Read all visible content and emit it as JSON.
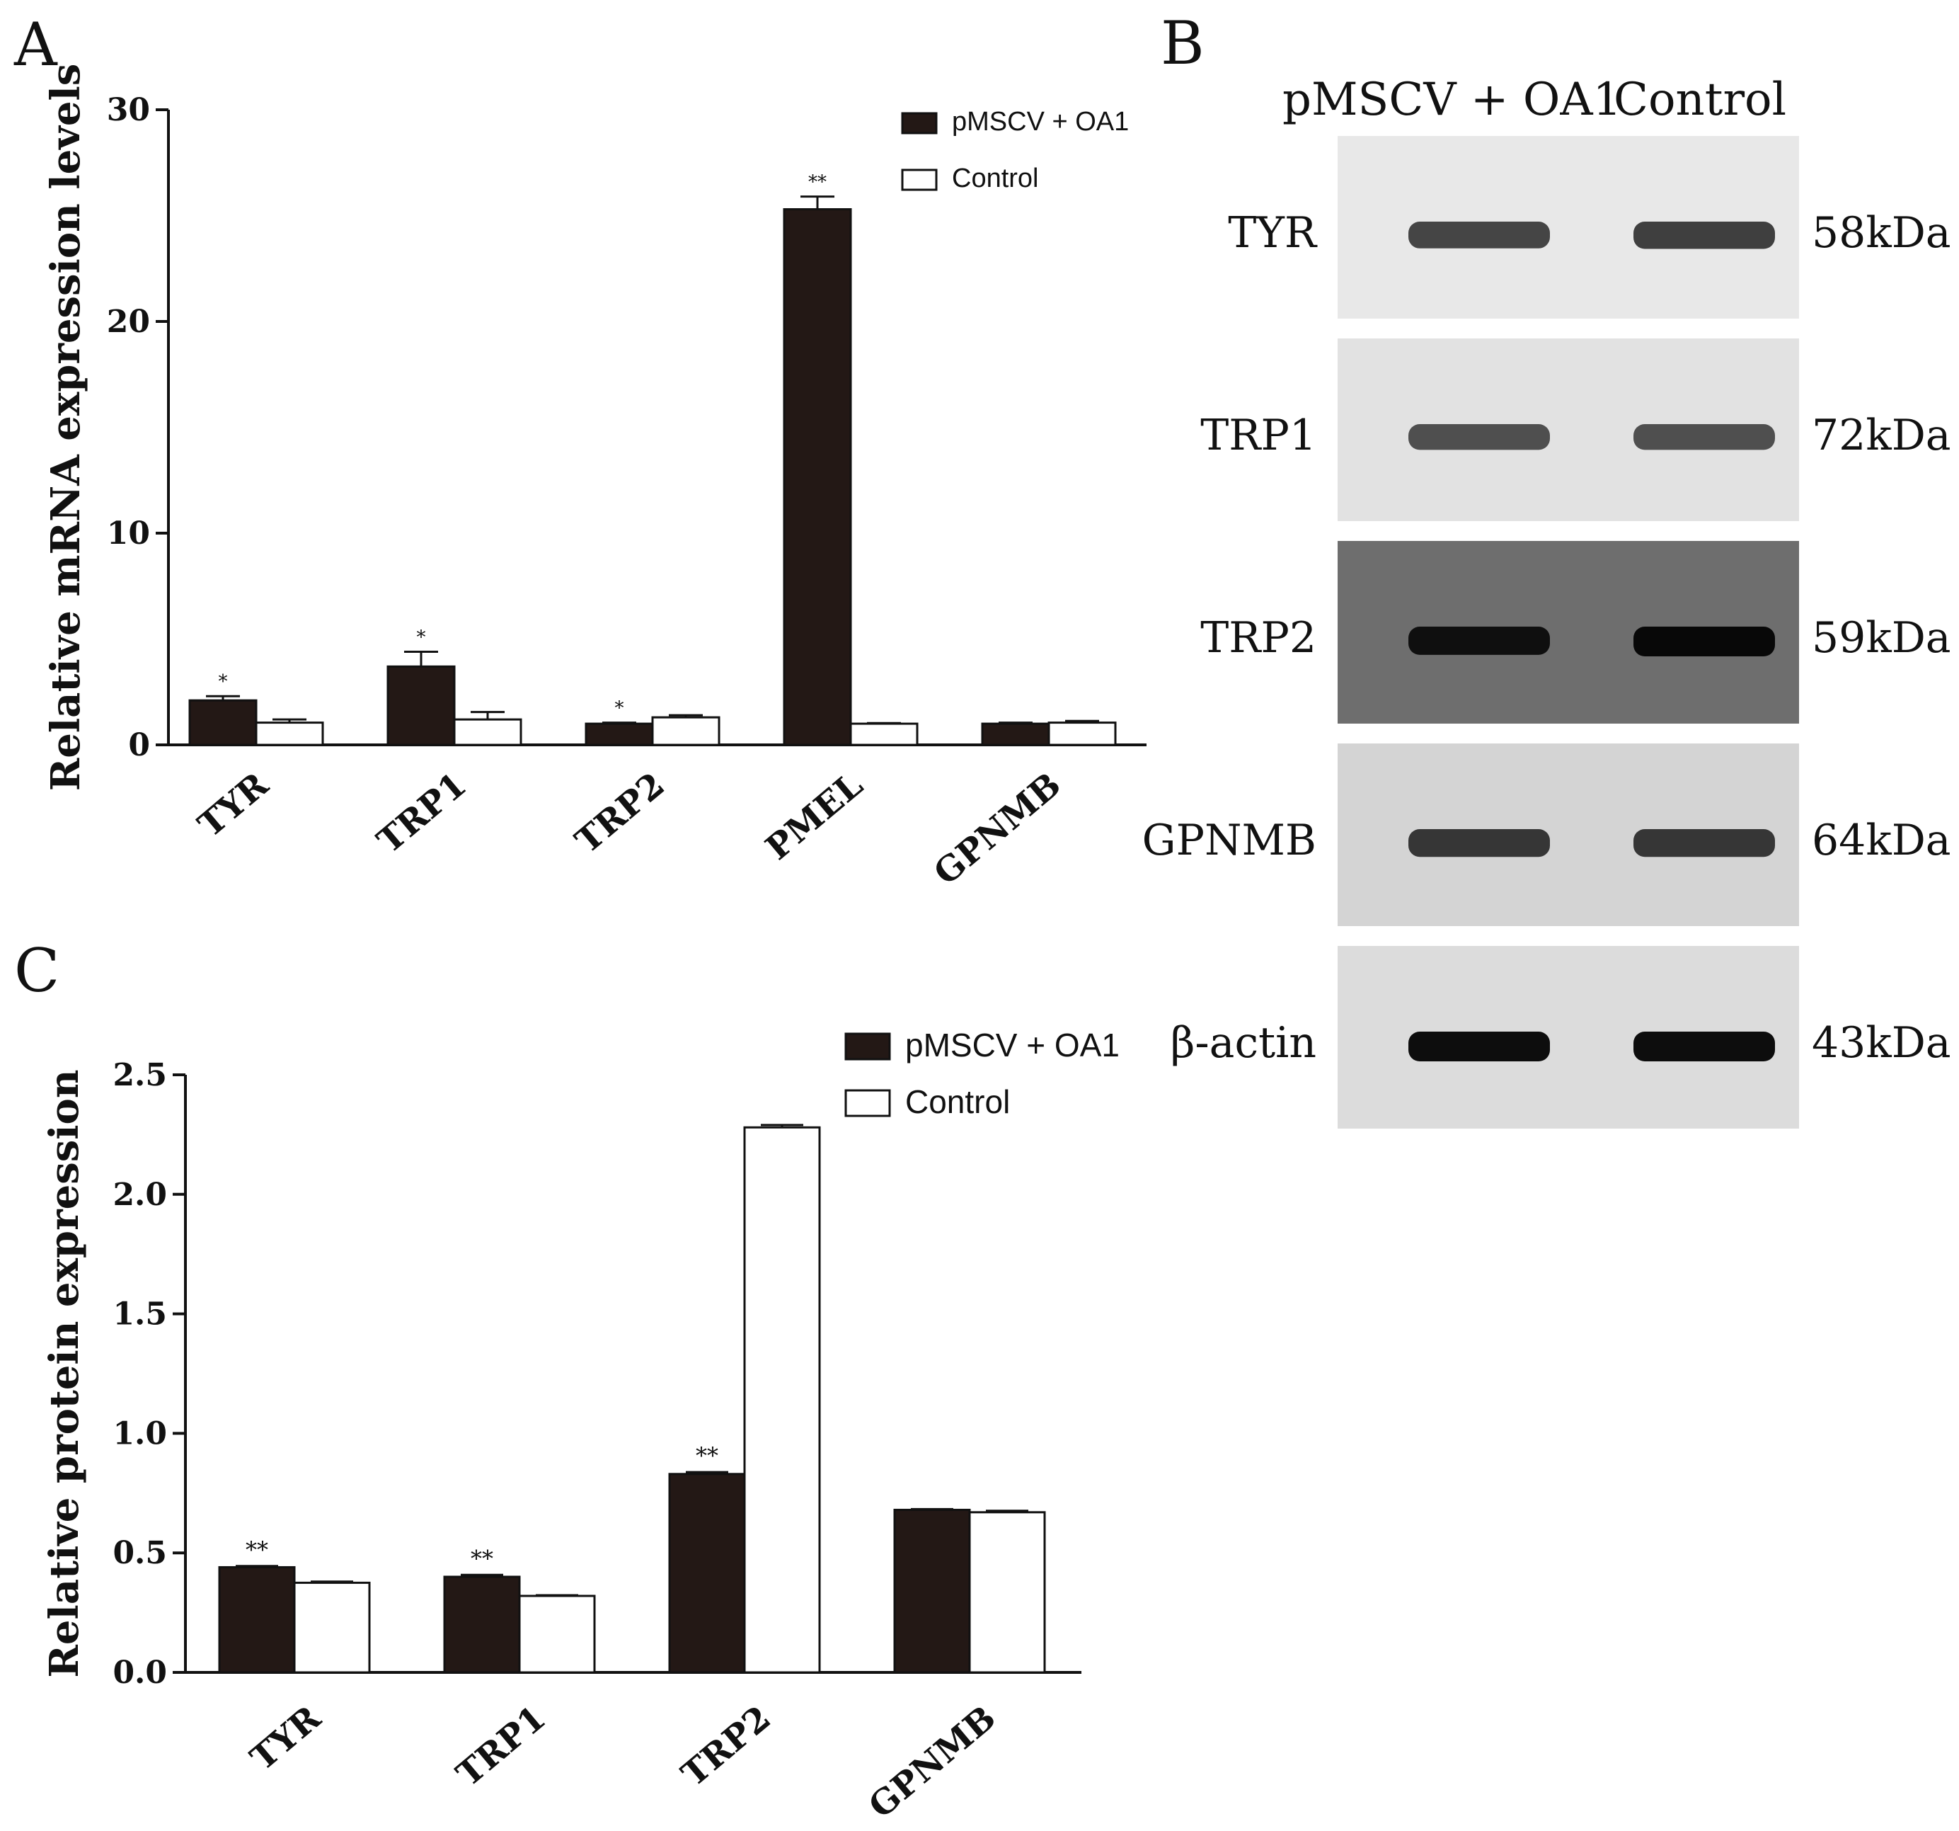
{
  "panels": {
    "a_letter": "A",
    "b_letter": "B",
    "c_letter": "C"
  },
  "colors": {
    "treated_fill": "#231815",
    "control_fill": "#ffffff",
    "axis": "#111111"
  },
  "chart_data": [
    {
      "panel": "A",
      "type": "bar",
      "ylabel": "Relative mRNA expression levels",
      "ylim": [
        0,
        30
      ],
      "yticks": [
        0,
        10,
        20,
        30
      ],
      "categories": [
        "TYR",
        "TRP1",
        "TRP2",
        "PMEL",
        "GPNMB"
      ],
      "series": [
        {
          "name": "pMSCV + OA1",
          "color": "#231815",
          "values": [
            2.1,
            3.7,
            1.0,
            25.3,
            1.0
          ],
          "errors": [
            0.2,
            0.7,
            0.05,
            0.6,
            0.05
          ]
        },
        {
          "name": "Control",
          "color": "#ffffff",
          "values": [
            1.05,
            1.2,
            1.3,
            1.0,
            1.05
          ],
          "errors": [
            0.15,
            0.35,
            0.1,
            0.03,
            0.08
          ]
        }
      ],
      "significance": [
        "*",
        "*",
        "*",
        "**",
        ""
      ],
      "legend_position": "top-right",
      "grid": false
    },
    {
      "panel": "C",
      "type": "bar",
      "ylabel": "Relative protein expression",
      "ylim": [
        0,
        2.5
      ],
      "yticks": [
        "0.0",
        "0.5",
        "1.0",
        "1.5",
        "2.0",
        "2.5"
      ],
      "categories": [
        "TYR",
        "TRP1",
        "TRP2",
        "GPNMB"
      ],
      "series": [
        {
          "name": "pMSCV + OA1",
          "color": "#231815",
          "values": [
            0.44,
            0.4,
            0.83,
            0.68
          ],
          "errors": [
            0.005,
            0.008,
            0.008,
            0.003
          ]
        },
        {
          "name": "Control",
          "color": "#ffffff",
          "values": [
            0.375,
            0.32,
            2.28,
            0.67
          ],
          "errors": [
            0.005,
            0.003,
            0.01,
            0.006
          ]
        }
      ],
      "significance": [
        "**",
        "**",
        "**",
        ""
      ],
      "legend_position": "top-right",
      "grid": false
    }
  ],
  "blot": {
    "header_left": "pMSCV + OA1",
    "header_right": "Control",
    "rows": [
      {
        "protein": "TYR",
        "weight": "58kDa",
        "background": "#e8e8e8",
        "band_color": "#2a2a2a",
        "intensity_left": 0.7,
        "intensity_right": 0.75
      },
      {
        "protein": "TRP1",
        "weight": "72kDa",
        "background": "#e2e2e2",
        "band_color": "#2e2e2e",
        "intensity_left": 0.6,
        "intensity_right": 0.6
      },
      {
        "protein": "TRP2",
        "weight": "59kDa",
        "background": "#6e6e6e",
        "band_color": "#080808",
        "intensity_left": 0.85,
        "intensity_right": 1.0
      },
      {
        "protein": "GPNMB",
        "weight": "64kDa",
        "background": "#d4d4d4",
        "band_color": "#262626",
        "intensity_left": 0.8,
        "intensity_right": 0.8
      },
      {
        "protein": "β-actin",
        "weight": "43kDa",
        "background": "#dcdcdc",
        "band_color": "#0d0d0d",
        "intensity_left": 1.0,
        "intensity_right": 1.0
      }
    ]
  }
}
